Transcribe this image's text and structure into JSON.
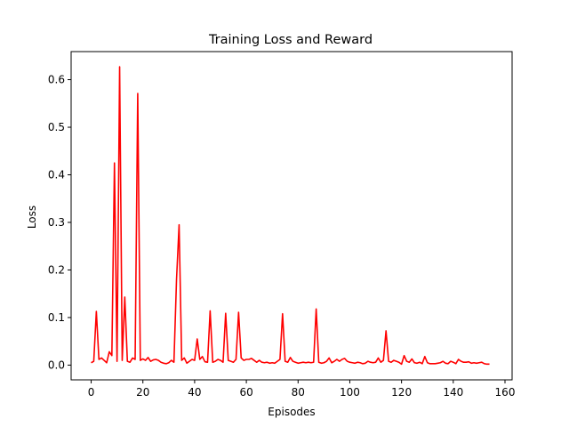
{
  "chart_data": {
    "type": "line",
    "title": "Training Loss and Reward",
    "xlabel": "Episodes",
    "ylabel": "Loss",
    "xlim": [
      -7.75,
      162.75
    ],
    "ylim": [
      -0.031,
      0.659
    ],
    "xticks": [
      0,
      20,
      40,
      60,
      80,
      100,
      120,
      140,
      160
    ],
    "xtick_labels": [
      "0",
      "20",
      "40",
      "60",
      "80",
      "100",
      "120",
      "140",
      "160"
    ],
    "yticks": [
      0.0,
      0.1,
      0.2,
      0.3,
      0.4,
      0.5,
      0.6
    ],
    "ytick_labels": [
      "0.0",
      "0.1",
      "0.2",
      "0.3",
      "0.4",
      "0.5",
      "0.6"
    ],
    "grid": false,
    "series": [
      {
        "color": "#ff0000",
        "x": [
          0,
          1,
          2,
          3,
          4,
          5,
          6,
          7,
          8,
          9,
          10,
          11,
          12,
          13,
          14,
          15,
          16,
          17,
          18,
          19,
          20,
          21,
          22,
          23,
          24,
          25,
          26,
          27,
          28,
          29,
          30,
          31,
          32,
          33,
          34,
          35,
          36,
          37,
          38,
          39,
          40,
          41,
          42,
          43,
          44,
          45,
          46,
          47,
          48,
          49,
          50,
          51,
          52,
          53,
          54,
          55,
          56,
          57,
          58,
          59,
          60,
          61,
          62,
          63,
          64,
          65,
          66,
          67,
          68,
          69,
          70,
          71,
          72,
          73,
          74,
          75,
          76,
          77,
          78,
          79,
          80,
          81,
          82,
          83,
          84,
          85,
          86,
          87,
          88,
          89,
          90,
          91,
          92,
          93,
          94,
          95,
          96,
          97,
          98,
          99,
          100,
          101,
          102,
          103,
          104,
          105,
          106,
          107,
          108,
          109,
          110,
          111,
          112,
          113,
          114,
          115,
          116,
          117,
          118,
          119,
          120,
          121,
          122,
          123,
          124,
          125,
          126,
          127,
          128,
          129,
          130,
          131,
          132,
          133,
          134,
          135,
          136,
          137,
          138,
          139,
          140,
          141,
          142,
          143,
          144,
          145,
          146,
          147,
          148,
          149,
          150,
          151,
          152,
          153,
          154
        ],
        "y": [
          0.005,
          0.008,
          0.113,
          0.012,
          0.015,
          0.01,
          0.005,
          0.028,
          0.02,
          0.425,
          0.008,
          0.627,
          0.01,
          0.143,
          0.008,
          0.006,
          0.015,
          0.012,
          0.571,
          0.01,
          0.013,
          0.01,
          0.016,
          0.008,
          0.011,
          0.012,
          0.01,
          0.006,
          0.004,
          0.003,
          0.005,
          0.01,
          0.006,
          0.18,
          0.295,
          0.01,
          0.015,
          0.004,
          0.008,
          0.012,
          0.01,
          0.055,
          0.012,
          0.018,
          0.007,
          0.006,
          0.114,
          0.006,
          0.008,
          0.012,
          0.01,
          0.006,
          0.109,
          0.01,
          0.008,
          0.006,
          0.012,
          0.111,
          0.015,
          0.01,
          0.012,
          0.012,
          0.014,
          0.01,
          0.006,
          0.01,
          0.006,
          0.005,
          0.006,
          0.004,
          0.005,
          0.004,
          0.008,
          0.012,
          0.108,
          0.008,
          0.006,
          0.016,
          0.008,
          0.006,
          0.004,
          0.005,
          0.006,
          0.005,
          0.006,
          0.005,
          0.006,
          0.118,
          0.006,
          0.004,
          0.005,
          0.008,
          0.015,
          0.005,
          0.008,
          0.012,
          0.008,
          0.012,
          0.014,
          0.008,
          0.006,
          0.005,
          0.004,
          0.006,
          0.005,
          0.003,
          0.004,
          0.008,
          0.006,
          0.005,
          0.006,
          0.015,
          0.006,
          0.01,
          0.072,
          0.008,
          0.006,
          0.01,
          0.008,
          0.006,
          0.002,
          0.02,
          0.008,
          0.006,
          0.013,
          0.005,
          0.004,
          0.006,
          0.003,
          0.018,
          0.005,
          0.003,
          0.003,
          0.003,
          0.004,
          0.005,
          0.008,
          0.004,
          0.003,
          0.008,
          0.006,
          0.003,
          0.012,
          0.008,
          0.006,
          0.006,
          0.007,
          0.004,
          0.005,
          0.004,
          0.005,
          0.006,
          0.003,
          0.002,
          0.002
        ]
      }
    ]
  }
}
